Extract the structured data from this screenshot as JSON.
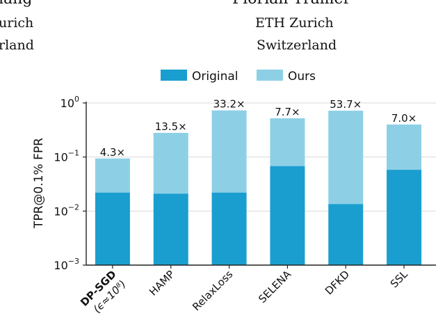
{
  "header": {
    "left": {
      "name_fragment": "iang",
      "affiliation_fragment": "urich",
      "country_fragment": "rland"
    },
    "right": {
      "name": "Florian Tramèr",
      "affiliation": "ETH Zurich",
      "country": "Switzerland"
    }
  },
  "colors": {
    "original": "#1a9ecf",
    "ours": "#8dd0e6",
    "axis": "#222222",
    "grid": "#d9d9d9"
  },
  "chart_data": {
    "type": "bar",
    "stacked": true,
    "ylabel": "TPR@0.1% FPR",
    "xlabel": "",
    "yscale": "log",
    "ylim": [
      0.001,
      1
    ],
    "yticks": [
      {
        "base": "10",
        "exp": "0"
      },
      {
        "base": "10",
        "exp": "−1"
      },
      {
        "base": "10",
        "exp": "−2"
      },
      {
        "base": "10",
        "exp": "−3"
      }
    ],
    "grid": true,
    "legend_position": "top-center",
    "categories": [
      "DP-SGD",
      "HAMP",
      "RelaxLoss",
      "SELENA",
      "DFKD",
      "SSL"
    ],
    "category_subtitle": {
      "DP-SGD": "(ϵ≈10⁸)"
    },
    "series": [
      {
        "name": "Original",
        "values": [
          0.022,
          0.021,
          0.022,
          0.068,
          0.0135,
          0.058
        ]
      },
      {
        "name": "Ours",
        "values": [
          0.094,
          0.28,
          0.73,
          0.52,
          0.72,
          0.4
        ]
      }
    ],
    "annotations": [
      "4.3×",
      "13.5×",
      "33.2×",
      "7.7×",
      "53.7×",
      "7.0×"
    ]
  }
}
